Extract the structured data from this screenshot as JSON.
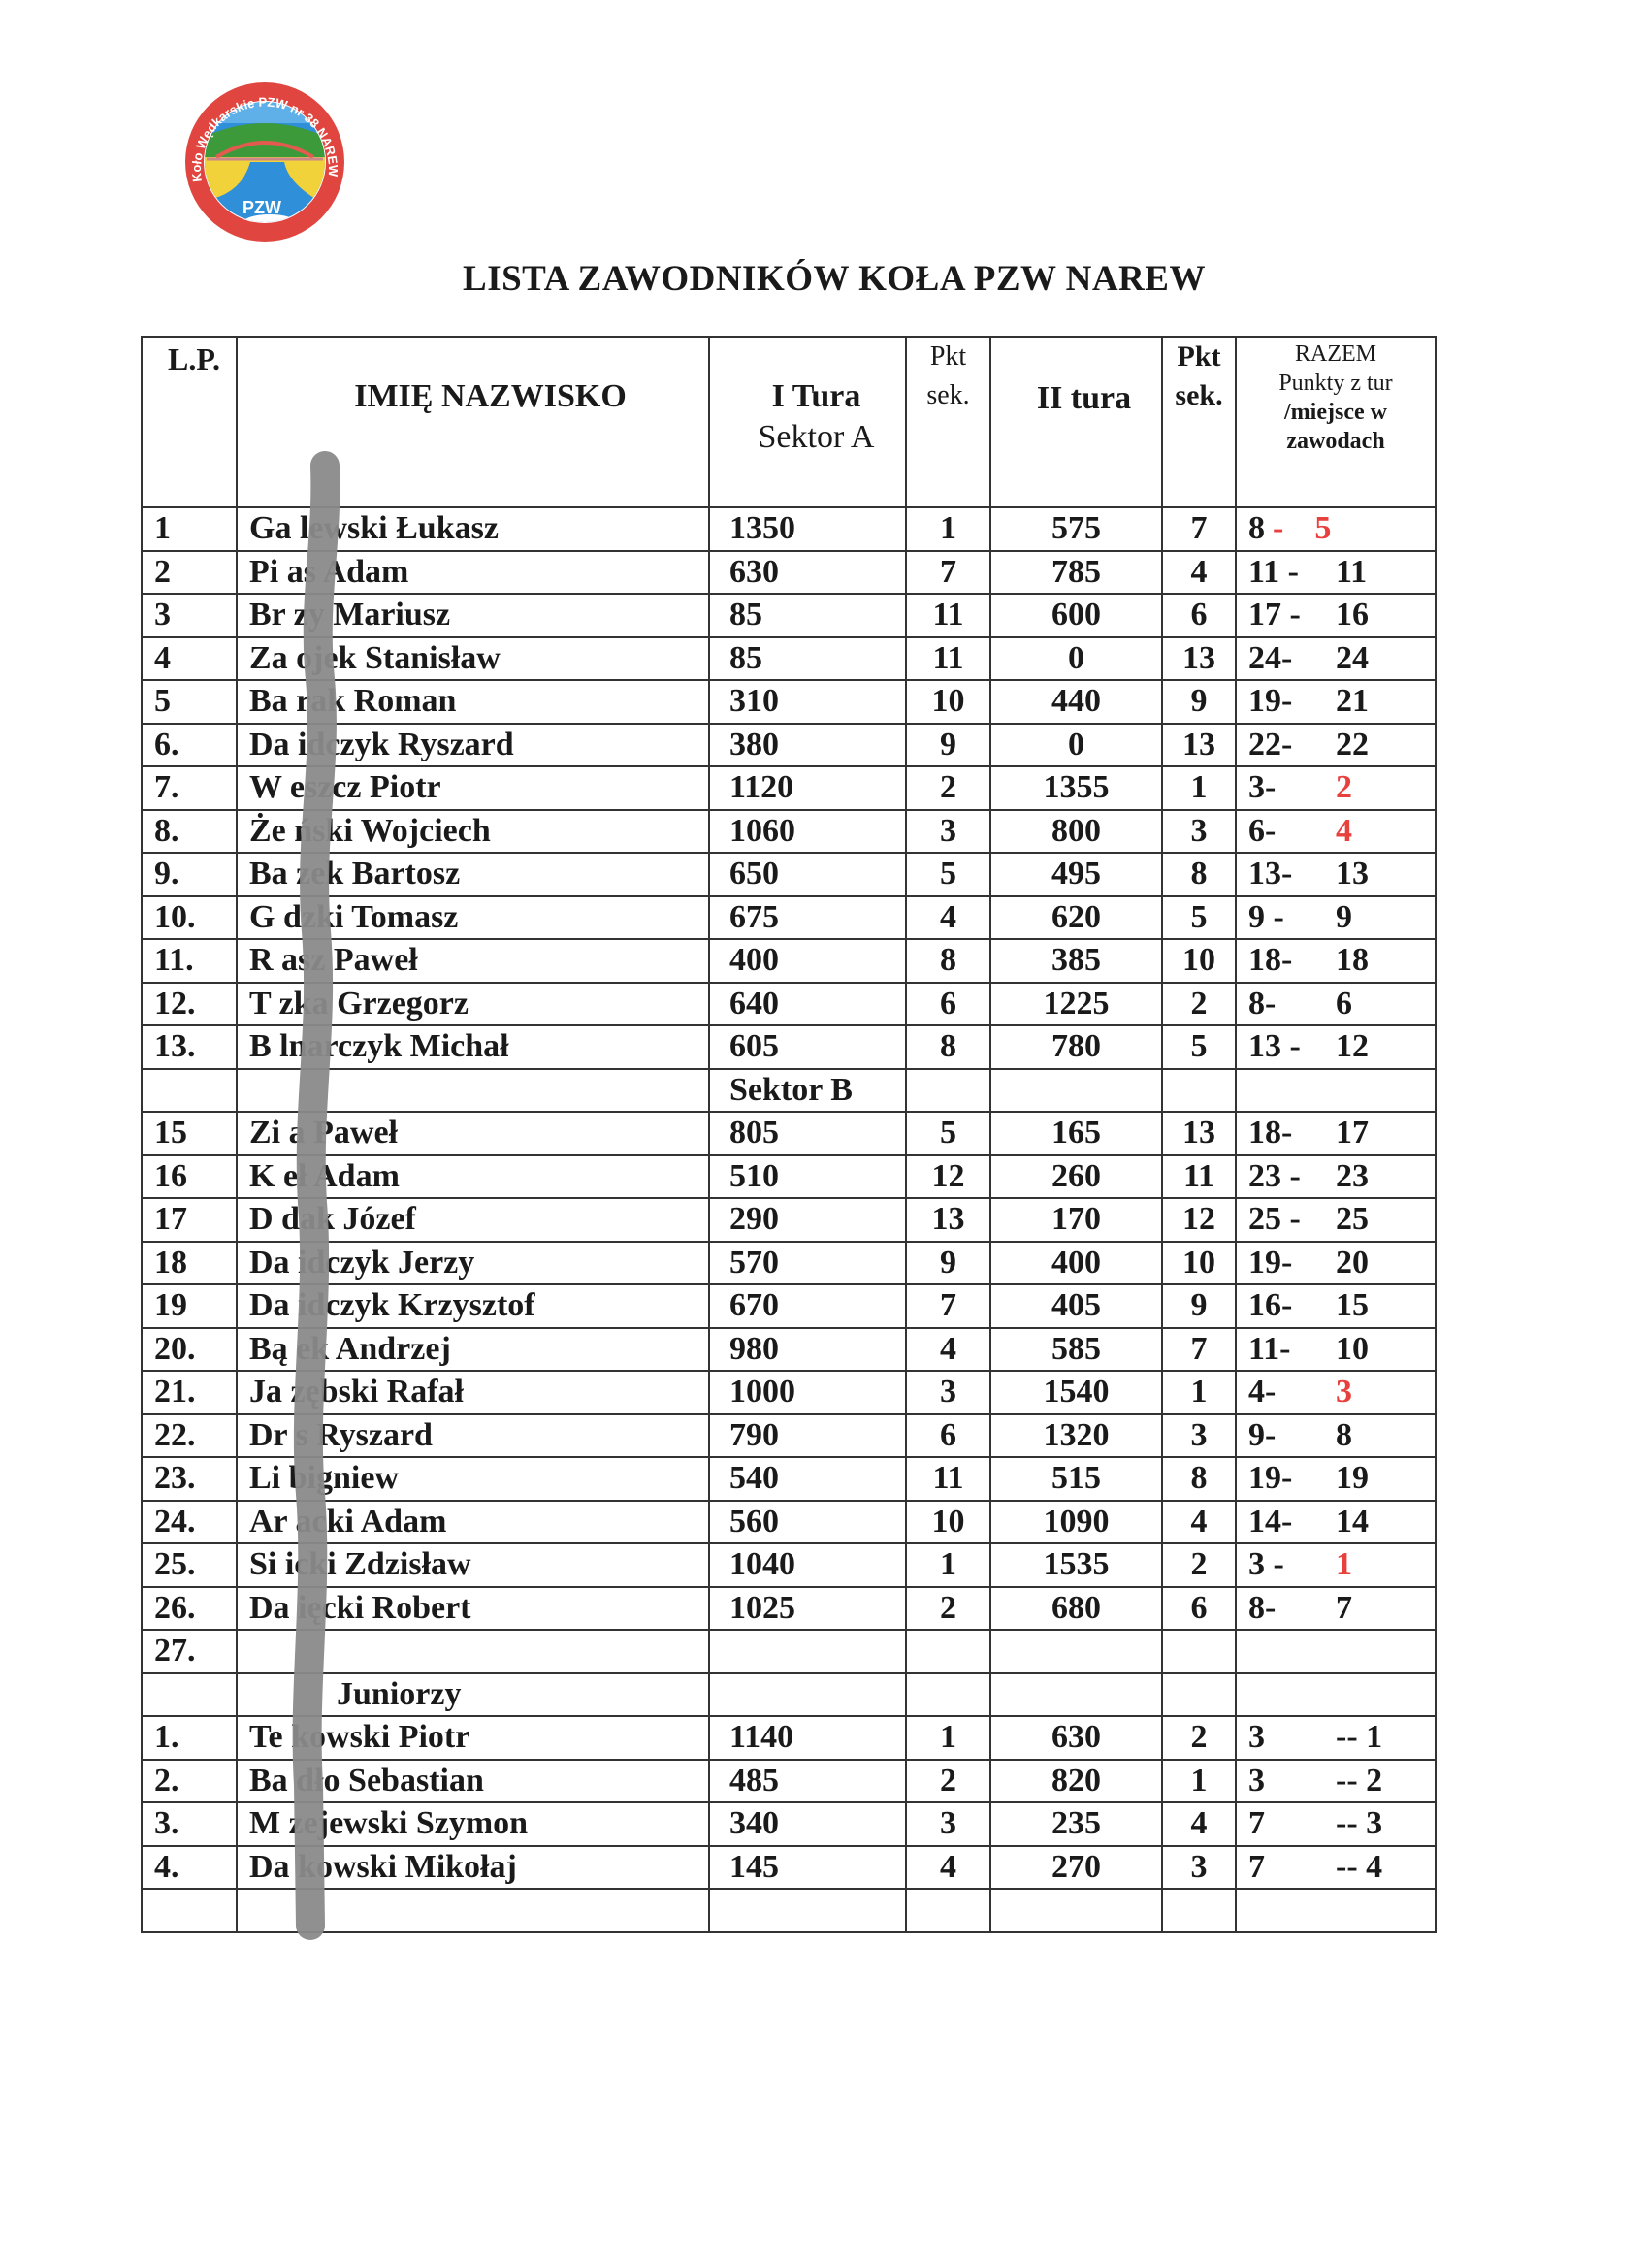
{
  "logo": {
    "text": "Koło Wędkarskie PZW nr 38 NAREW w Ostrołęce",
    "emblem": "PZW",
    "colors": {
      "ring": "#e0463f",
      "river": "#2f8fd8",
      "sand": "#f2d23a",
      "hills": "#3d9a3a"
    }
  },
  "title": "LISTA ZAWODNIKÓW KOŁA PZW NAREW",
  "header": {
    "lp": "L.P.",
    "name": "IMIĘ NAZWISKO",
    "t1_line1": "I Tura",
    "t1_line2": "Sektor A",
    "p1_line1": "Pkt",
    "p1_line2": "sek.",
    "t2": "II tura",
    "p2_line1": "Pkt",
    "p2_line2": "sek.",
    "r_line1": "RAZEM",
    "r_line2": "Punkty z tur",
    "r_line3": "/miejsce w",
    "r_line4": "zawodach"
  },
  "colors": {
    "highlight": "#e8403c",
    "redaction": "#8a8a8a"
  },
  "rows": [
    {
      "lp": "1",
      "name": "Ga lewski Łukasz",
      "t1": "1350",
      "p1": "1",
      "t2": "575",
      "p2": "7",
      "rl": "8",
      "sep": "-",
      "rr": "5",
      "red": true,
      "redsep": true
    },
    {
      "lp": "2",
      "name": "Pi as Adam",
      "t1": "630",
      "p1": "7",
      "t2": "785",
      "p2": "4",
      "rl": "11 -",
      "rr": "11"
    },
    {
      "lp": "3",
      "name": "Br zy Mariusz",
      "t1": "85",
      "p1": "11",
      "t2": "600",
      "p2": "6",
      "rl": "17 -",
      "rr": "16"
    },
    {
      "lp": "4",
      "name": "Za ojek Stanisław",
      "t1": "85",
      "p1": "11",
      "t2": "0",
      "p2": "13",
      "rl": "24-",
      "rr": "24"
    },
    {
      "lp": "5",
      "name": "Ba rak Roman",
      "t1": "310",
      "p1": "10",
      "t2": "440",
      "p2": "9",
      "rl": "19-",
      "rr": "21"
    },
    {
      "lp": "6.",
      "name": "Da idczyk Ryszard",
      "t1": "380",
      "p1": "9",
      "t2": "0",
      "p2": "13",
      "rl": "22-",
      "rr": "22"
    },
    {
      "lp": "7.",
      "name": "W eszcz Piotr",
      "t1": "1120",
      "p1": "2",
      "t2": "1355",
      "p2": "1",
      "rl": "3-",
      "rr": "2",
      "red": true
    },
    {
      "lp": "8.",
      "name": "Że ński Wojciech",
      "t1": "1060",
      "p1": "3",
      "t2": "800",
      "p2": "3",
      "rl": "6-",
      "rr": "4",
      "red": true
    },
    {
      "lp": "9.",
      "name": "Ba zek Bartosz",
      "t1": "650",
      "p1": "5",
      "t2": "495",
      "p2": "8",
      "rl": "13-",
      "rr": "13"
    },
    {
      "lp": "10.",
      "name": "G dzki Tomasz",
      "t1": "675",
      "p1": "4",
      "t2": "620",
      "p2": "5",
      "rl": "9 -",
      "rr": "9"
    },
    {
      "lp": "11.",
      "name": "R asz Paweł",
      "t1": "400",
      "p1": "8",
      "t2": "385",
      "p2": "10",
      "rl": "18-",
      "rr": "18"
    },
    {
      "lp": "12.",
      "name": "T zka Grzegorz",
      "t1": "640",
      "p1": "6",
      "t2": "1225",
      "p2": "2",
      "rl": "8-",
      "rr": "6"
    },
    {
      "lp": "13.",
      "name": "B lnarczyk Michał",
      "t1": "605",
      "p1": "8",
      "t2": "780",
      "p2": "5",
      "rl": "13 -",
      "rr": "12"
    },
    {
      "section": "Sektor B",
      "col": "t1"
    },
    {
      "lp": "15",
      "name": "Zi a Paweł",
      "t1": "805",
      "p1": "5",
      "t2": "165",
      "p2": "13",
      "rl": "18-",
      "rr": "17"
    },
    {
      "lp": "16",
      "name": "K eł Adam",
      "t1": "510",
      "p1": "12",
      "t2": "260",
      "p2": "11",
      "rl": "23 -",
      "rr": "23"
    },
    {
      "lp": "17",
      "name": "D dak Józef",
      "t1": "290",
      "p1": "13",
      "t2": "170",
      "p2": "12",
      "rl": "25 -",
      "rr": "25"
    },
    {
      "lp": "18",
      "name": "Da idczyk Jerzy",
      "t1": "570",
      "p1": "9",
      "t2": "400",
      "p2": "10",
      "rl": "19-",
      "rr": "20"
    },
    {
      "lp": "19",
      "name": "Da idczyk Krzysztof",
      "t1": "670",
      "p1": "7",
      "t2": "405",
      "p2": "9",
      "rl": "16-",
      "rr": "15"
    },
    {
      "lp": "20.",
      "name": "Bą ek Andrzej",
      "t1": "980",
      "p1": "4",
      "t2": "585",
      "p2": "7",
      "rl": "11-",
      "rr": "10"
    },
    {
      "lp": "21.",
      "name": "Ja zębski Rafał",
      "t1": "1000",
      "p1": "3",
      "t2": "1540",
      "p2": "1",
      "rl": "4-",
      "rr": "3",
      "red": true
    },
    {
      "lp": "22.",
      "name": "Dr s Ryszard",
      "t1": "790",
      "p1": "6",
      "t2": "1320",
      "p2": "3",
      "rl": "9-",
      "rr": "8"
    },
    {
      "lp": "23.",
      "name": "Li bigniew",
      "t1": "540",
      "p1": "11",
      "t2": "515",
      "p2": "8",
      "rl": "19-",
      "rr": "19"
    },
    {
      "lp": "24.",
      "name": "Ar acki Adam",
      "t1": "560",
      "p1": "10",
      "t2": "1090",
      "p2": "4",
      "rl": "14-",
      "rr": "14"
    },
    {
      "lp": "25.",
      "name": "Si icki Zdzisław",
      "t1": "1040",
      "p1": "1",
      "t2": "1535",
      "p2": "2",
      "rl": "3 -",
      "rr": "1",
      "red": true
    },
    {
      "lp": "26.",
      "name": "Da ięcki Robert",
      "t1": "1025",
      "p1": "2",
      "t2": "680",
      "p2": "6",
      "rl": "8-",
      "rr": "7"
    },
    {
      "lp": "27.",
      "name": "",
      "t1": "",
      "p1": "",
      "t2": "",
      "p2": "",
      "rl": "",
      "rr": ""
    },
    {
      "section": "Juniorzy",
      "col": "name"
    },
    {
      "lp": "1.",
      "name": "Te kowski Piotr",
      "t1": "1140",
      "p1": "1",
      "t2": "630",
      "p2": "2",
      "rl": "3",
      "rr": "-- 1"
    },
    {
      "lp": "2.",
      "name": "Ba dło Sebastian",
      "t1": "485",
      "p1": "2",
      "t2": "820",
      "p2": "1",
      "rl": "3",
      "rr": "-- 2"
    },
    {
      "lp": "3.",
      "name": "M zejewski Szymon",
      "t1": "340",
      "p1": "3",
      "t2": "235",
      "p2": "4",
      "rl": "7",
      "rr": "-- 3"
    },
    {
      "lp": "4.",
      "name": "Da kowski Mikołaj",
      "t1": "145",
      "p1": "4",
      "t2": "270",
      "p2": "3",
      "rl": "7",
      "rr": "-- 4"
    },
    {
      "lp": "",
      "name": "",
      "t1": "",
      "p1": "",
      "t2": "",
      "p2": "",
      "rl": "",
      "rr": ""
    }
  ]
}
